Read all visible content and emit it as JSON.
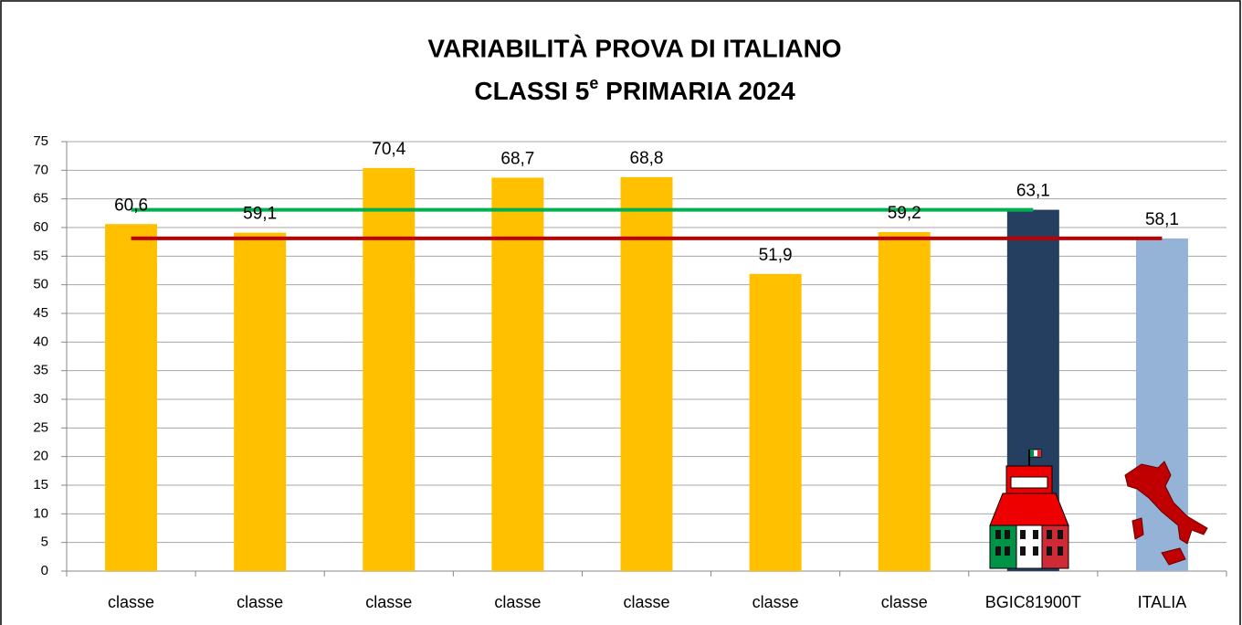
{
  "chart_data": {
    "type": "bar",
    "title": "VARIABILITÀ PROVA DI ITALIANO",
    "subtitle": {
      "text": "CLASSI 5",
      "sup": "e",
      "rest": " PRIMARIA 2024"
    },
    "categories": [
      "classe",
      "classe",
      "classe",
      "classe",
      "classe",
      "classe",
      "classe",
      "BGIC81900T",
      "ITALIA"
    ],
    "values": [
      60.6,
      59.1,
      70.4,
      68.7,
      68.8,
      51.9,
      59.2,
      63.1,
      58.1
    ],
    "value_labels": [
      "60,6",
      "59,1",
      "70,4",
      "68,7",
      "68,8",
      "51,9",
      "59,2",
      "63,1",
      "58,1"
    ],
    "colors": [
      "#ffc000",
      "#ffc000",
      "#ffc000",
      "#ffc000",
      "#ffc000",
      "#ffc000",
      "#ffc000",
      "#243f60",
      "#95b3d7"
    ],
    "series": [
      {
        "color": "#00b050",
        "values": [
          63.1,
          63.1,
          63.1,
          63.1,
          63.1,
          63.1,
          63.1,
          63.1,
          null
        ]
      },
      {
        "color": "#c00000",
        "values": [
          58.1,
          58.1,
          58.1,
          58.1,
          58.1,
          58.1,
          58.1,
          58.1,
          58.1
        ]
      }
    ],
    "ylim": [
      0,
      75
    ],
    "yticks": [
      0,
      5,
      10,
      15,
      20,
      25,
      30,
      35,
      40,
      45,
      50,
      55,
      60,
      65,
      70,
      75
    ],
    "grid": true
  }
}
